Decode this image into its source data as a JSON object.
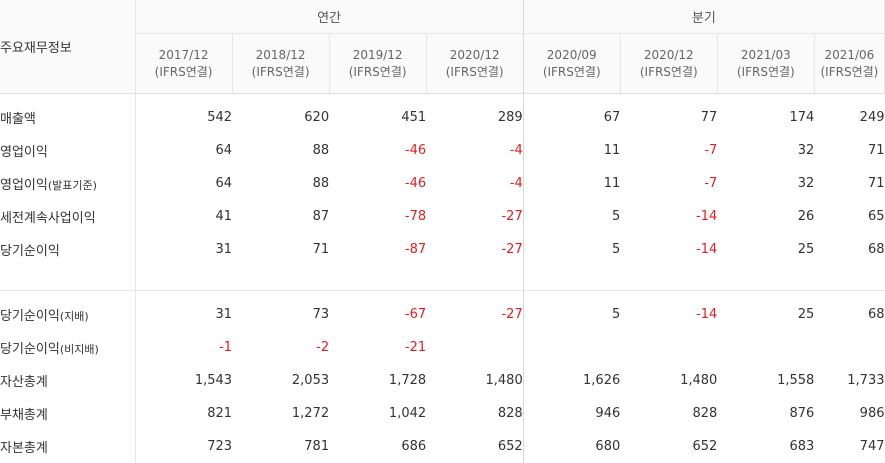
{
  "header": {
    "corner_label": "주요재무정보",
    "groups": {
      "annual": "연간",
      "quarterly": "분기"
    },
    "periods": [
      {
        "date": "2017/12",
        "basis": "(IFRS연결)"
      },
      {
        "date": "2018/12",
        "basis": "(IFRS연결)"
      },
      {
        "date": "2019/12",
        "basis": "(IFRS연결)"
      },
      {
        "date": "2020/12",
        "basis": "(IFRS연결)"
      },
      {
        "date": "2020/09",
        "basis": "(IFRS연결)"
      },
      {
        "date": "2020/12",
        "basis": "(IFRS연결)"
      },
      {
        "date": "2021/03",
        "basis": "(IFRS연결)"
      },
      {
        "date": "2021/06",
        "basis": "(IFRS연결)"
      }
    ]
  },
  "rows_group1": [
    {
      "label": "매출액",
      "suffix": "",
      "values": [
        "542",
        "620",
        "451",
        "289",
        "67",
        "77",
        "174",
        "249"
      ]
    },
    {
      "label": "영업이익",
      "suffix": "",
      "values": [
        "64",
        "88",
        "-46",
        "-4",
        "11",
        "-7",
        "32",
        "71"
      ]
    },
    {
      "label": "영업이익",
      "suffix": "(발표기준)",
      "values": [
        "64",
        "88",
        "-46",
        "-4",
        "11",
        "-7",
        "32",
        "71"
      ]
    },
    {
      "label": "세전계속사업이익",
      "suffix": "",
      "values": [
        "41",
        "87",
        "-78",
        "-27",
        "5",
        "-14",
        "26",
        "65"
      ]
    },
    {
      "label": "당기순이익",
      "suffix": "",
      "values": [
        "31",
        "71",
        "-87",
        "-27",
        "5",
        "-14",
        "25",
        "68"
      ]
    }
  ],
  "rows_group2": [
    {
      "label": "당기순이익",
      "suffix": "(지배)",
      "values": [
        "31",
        "73",
        "-67",
        "-27",
        "5",
        "-14",
        "25",
        "68"
      ]
    },
    {
      "label": "당기순이익",
      "suffix": "(비지배)",
      "values": [
        "-1",
        "-2",
        "-21",
        "",
        "",
        "",
        "",
        ""
      ]
    },
    {
      "label": "자산총계",
      "suffix": "",
      "values": [
        "1,543",
        "2,053",
        "1,728",
        "1,480",
        "1,626",
        "1,480",
        "1,558",
        "1,733"
      ]
    },
    {
      "label": "부채총계",
      "suffix": "",
      "values": [
        "821",
        "1,272",
        "1,042",
        "828",
        "946",
        "828",
        "876",
        "986"
      ]
    },
    {
      "label": "자본총계",
      "suffix": "",
      "values": [
        "723",
        "781",
        "686",
        "652",
        "680",
        "652",
        "683",
        "747"
      ]
    }
  ]
}
